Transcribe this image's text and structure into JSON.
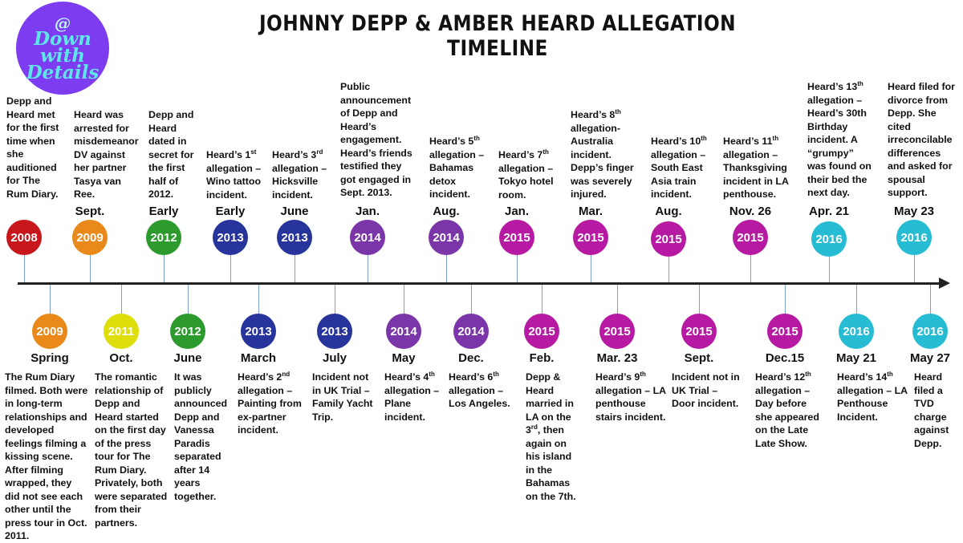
{
  "title": "JOHNNY DEPP & AMBER HEARD ALLEGATION TIMELINE",
  "logo": {
    "at": "@",
    "line1": "Down",
    "line2": "with",
    "line3": "Details"
  },
  "colors": {
    "red": "#c8161d",
    "orange": "#e8891a",
    "yellow": "#dede0a",
    "green": "#2d9a2d",
    "navy": "#27349b",
    "purple": "#7a36a8",
    "magenta": "#b61aa2",
    "cyan": "#26bcd4"
  },
  "events": [
    {
      "year": "2008",
      "date": "",
      "desc": "Depp and Heard met for the first time when she auditioned for The Rum Diary.",
      "sup": "",
      "desc_after": ""
    },
    {
      "year": "2009",
      "date": "Spring",
      "desc": "The Rum Diary filmed. Both were in long-term relationships and developed feelings filming a kissing scene. After filming wrapped, they did not see each other until the press tour in Oct. 2011.",
      "sup": "",
      "desc_after": ""
    },
    {
      "year": "2009",
      "date": "Sept.",
      "desc": "Heard was arrested for misdemeanor DV against her partner Tasya van Ree.",
      "sup": "",
      "desc_after": ""
    },
    {
      "year": "2011",
      "date": "Oct.",
      "desc": "The romantic relationship of Depp and Heard started on the first day of the press tour for The Rum Diary. Privately, both were separated from their partners.",
      "sup": "",
      "desc_after": ""
    },
    {
      "year": "2012",
      "date": "Early",
      "desc": "Depp and Heard dated in secret for the first half of 2012.",
      "sup": "",
      "desc_after": ""
    },
    {
      "year": "2012",
      "date": "June",
      "desc": "It was publicly announced Depp and Vanessa Paradis separated after 14 years together.",
      "sup": "",
      "desc_after": ""
    },
    {
      "year": "2013",
      "date": "Early",
      "desc": "Heard’s 1",
      "sup": "st",
      "desc_after": " allegation – Wino tattoo incident."
    },
    {
      "year": "2013",
      "date": "March",
      "desc": "Heard’s 2",
      "sup": "nd",
      "desc_after": " allegation – Painting from ex-partner incident."
    },
    {
      "year": "2013",
      "date": "June",
      "desc": "Heard’s 3",
      "sup": "rd",
      "desc_after": " allegation – Hicksville incident."
    },
    {
      "year": "2013",
      "date": "July",
      "desc": "Incident not in UK Trial – Family Yacht Trip.",
      "sup": "",
      "desc_after": ""
    },
    {
      "year": "2014",
      "date": "Jan.",
      "desc": "Public announcement of Depp and Heard’s engagement. Heard’s friends testified they got engaged in Sept. 2013.",
      "sup": "",
      "desc_after": ""
    },
    {
      "year": "2014",
      "date": "May",
      "desc": "Heard’s 4",
      "sup": "th",
      "desc_after": " allegation – Plane incident."
    },
    {
      "year": "2014",
      "date": "Aug.",
      "desc": "Heard’s 5",
      "sup": "th",
      "desc_after": " allegation – Bahamas detox incident."
    },
    {
      "year": "2014",
      "date": "Dec.",
      "desc": "Heard’s 6",
      "sup": "th",
      "desc_after": " allegation – Los Angeles."
    },
    {
      "year": "2015",
      "date": "Jan.",
      "desc": "Heard’s 7",
      "sup": "th",
      "desc_after": " allegation – Tokyo hotel room."
    },
    {
      "year": "2015",
      "date": "Feb.",
      "desc": "Depp & Heard married in LA on the 3",
      "sup": "rd",
      "desc_after": ", then again on his island in the Bahamas on the 7th."
    },
    {
      "year": "2015",
      "date": "Mar.",
      "desc": "Heard’s 8",
      "sup": "th",
      "desc_after": " allegation- Australia incident. Depp’s finger was severely injured."
    },
    {
      "year": "2015",
      "date": "Mar. 23",
      "desc": "Heard’s 9",
      "sup": "th",
      "desc_after": " allegation – LA penthouse stairs incident."
    },
    {
      "year": "2015",
      "date": "Aug.",
      "desc": "Heard’s 10",
      "sup": "th",
      "desc_after": " allegation – South East Asia train incident."
    },
    {
      "year": "2015",
      "date": "Sept.",
      "desc": "Incident not in UK Trial – Door incident.",
      "sup": "",
      "desc_after": ""
    },
    {
      "year": "2015",
      "date": "Nov. 26",
      "desc": "Heard’s 11",
      "sup": "th",
      "desc_after": " allegation – Thanksgiving incident in LA penthouse."
    },
    {
      "year": "2015",
      "date": "Dec.15",
      "desc": "Heard’s 12",
      "sup": "th",
      "desc_after": " allegation – Day before she appeared on the Late Late Show."
    },
    {
      "year": "2016",
      "date": "Apr. 21",
      "desc": "Heard’s 13",
      "sup": "th",
      "desc_after": " allegation – Heard’s 30th Birthday incident. A “grumpy” was found on their bed the next day."
    },
    {
      "year": "2016",
      "date": "May 21",
      "desc": "Heard’s 14",
      "sup": "th",
      "desc_after": " allegation – LA Penthouse Incident."
    },
    {
      "year": "2016",
      "date": "May 23",
      "desc": "Heard filed for divorce from Depp. She cited irreconcilable differences and asked for spousal support.",
      "sup": "",
      "desc_after": ""
    },
    {
      "year": "2016",
      "date": "May 27",
      "desc": "Heard filed a TVD charge against Depp.",
      "sup": "",
      "desc_after": ""
    }
  ]
}
